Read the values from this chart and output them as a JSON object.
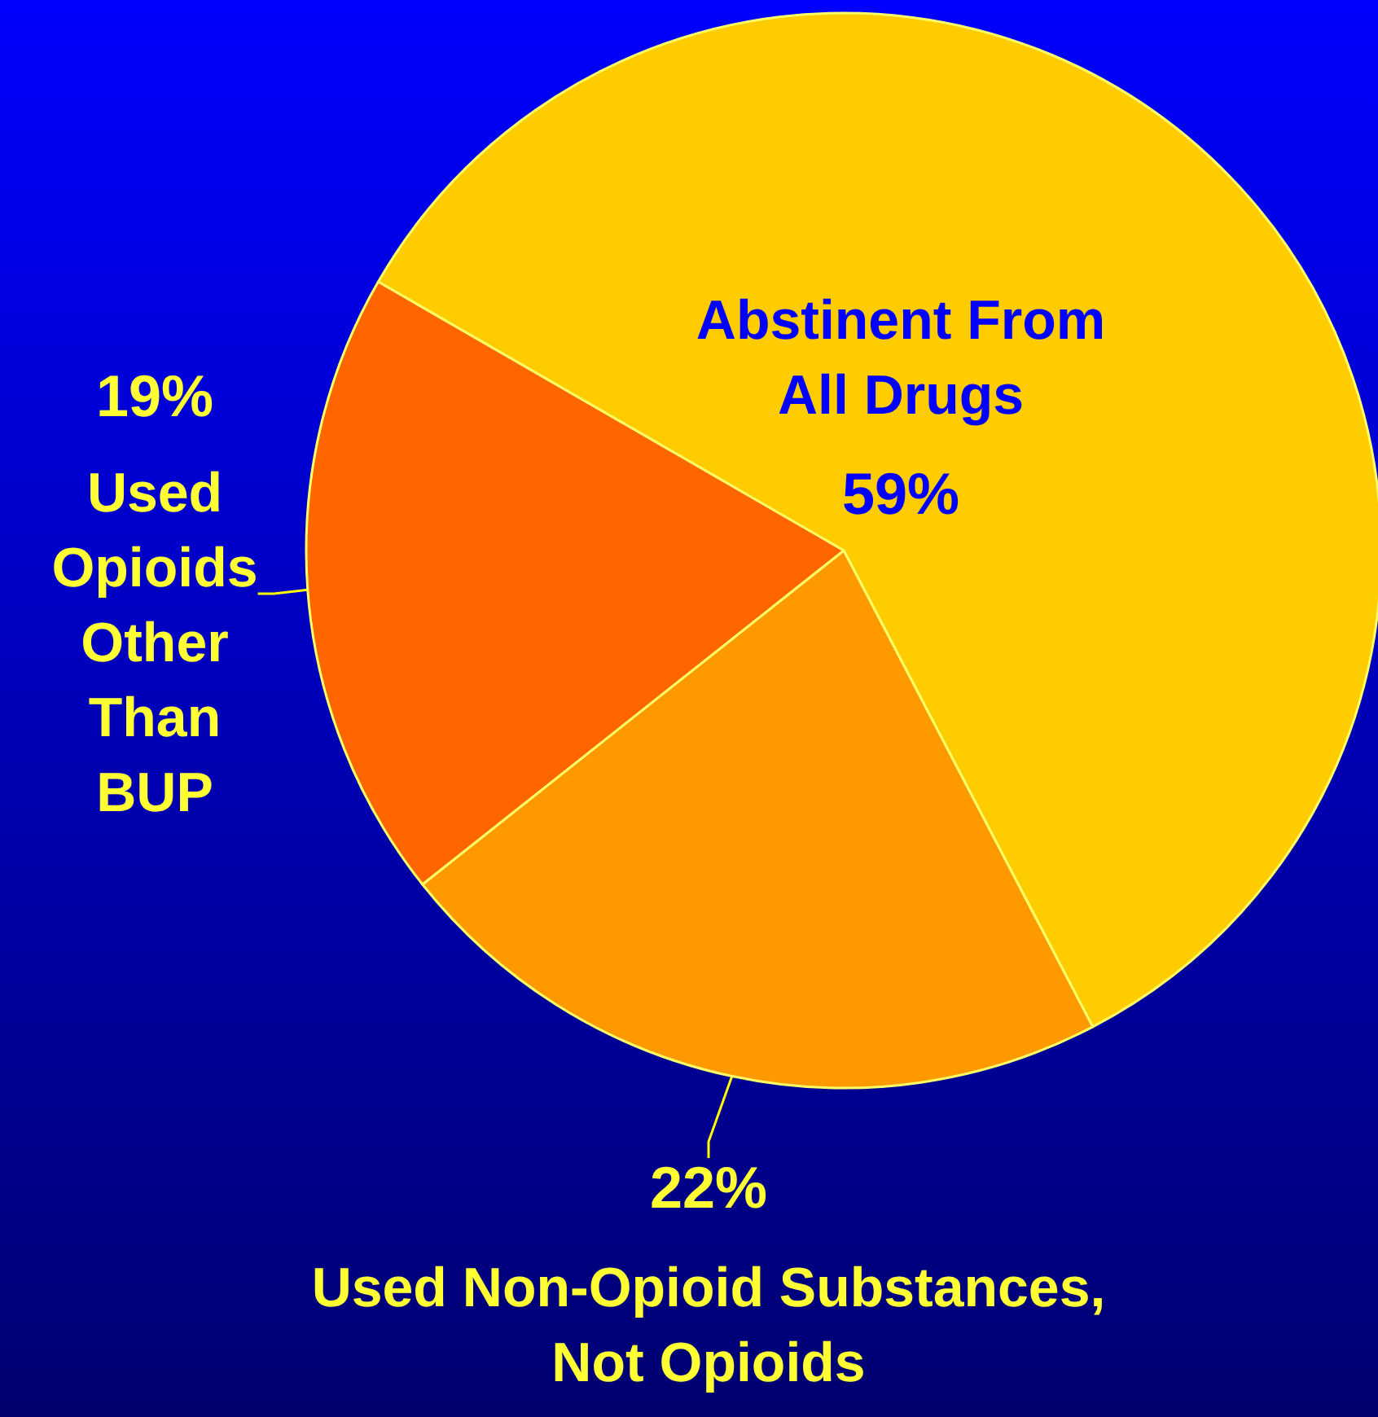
{
  "chart_data": {
    "type": "pie",
    "categories": [
      "Abstinent From All Drugs",
      "Used Non-Opioid Substances, Not Opioids",
      "Used Opioids Other Than BUP"
    ],
    "values": [
      59,
      22,
      19
    ],
    "colors": [
      "#ffcc00",
      "#ff9900",
      "#ff6600"
    ],
    "value_labels": [
      "59%",
      "22%",
      "19%"
    ],
    "legend": false
  }
}
